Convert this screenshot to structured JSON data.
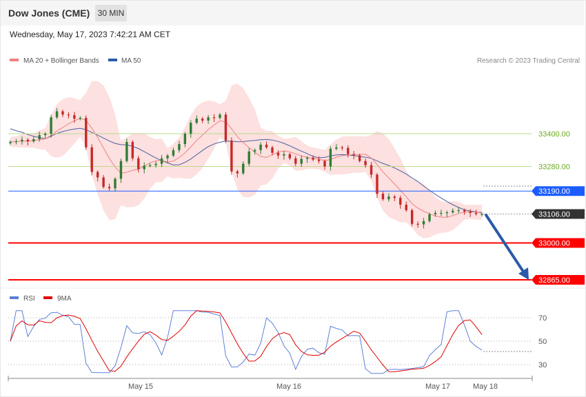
{
  "header": {
    "title": "Dow Jones (CME)",
    "timeframe": "30 MIN"
  },
  "datetime": "Wednesday, May 17, 2023 7:42:21 AM CET",
  "legend": {
    "price": [
      {
        "label": "MA 20 + Bollinger Bands",
        "color": "#f08080"
      },
      {
        "label": "MA 50",
        "color": "#2b5aa8"
      }
    ],
    "rsi": [
      {
        "label": "RSI",
        "color": "#5b7fd6"
      },
      {
        "label": "9MA",
        "color": "#e00000"
      }
    ]
  },
  "copyright": "Research © 2023 Trading Central",
  "colors": {
    "support": "#ff0000",
    "pivot": "#1a5cff",
    "resistance": "#9acd32",
    "last": "#333333",
    "arrow": "#2b5aa8",
    "up_candle": "#2e7d32",
    "down_candle": "#c62828",
    "band": "#fde0e0"
  },
  "chart_data": {
    "type": "candlestick",
    "title": "Dow Jones (CME)",
    "interval": "30 MIN",
    "price_axis": {
      "min": 32865,
      "max": 33480
    },
    "x_labels": [
      "May 15",
      "May 16",
      "May 17",
      "May 18"
    ],
    "price_levels": [
      {
        "value": 33400,
        "label": "33400.00",
        "kind": "resistance"
      },
      {
        "value": 33280,
        "label": "33280.00",
        "kind": "resistance"
      },
      {
        "value": 33190,
        "label": "33190.00",
        "kind": "pivot"
      },
      {
        "value": 33106,
        "label": "33106.00",
        "kind": "last"
      },
      {
        "value": 33000,
        "label": "33000.00",
        "kind": "support"
      },
      {
        "value": 32865,
        "label": "32865.00",
        "kind": "support"
      }
    ],
    "forecast_arrow": {
      "from": 33106,
      "to": 32865,
      "direction": "down"
    },
    "price_path": [
      33370,
      33372,
      33378,
      33372,
      33380,
      33395,
      33400,
      33460,
      33482,
      33470,
      33468,
      33455,
      33458,
      33350,
      33260,
      33240,
      33205,
      33200,
      33235,
      33300,
      33370,
      33310,
      33270,
      33283,
      33285,
      33290,
      33310,
      33320,
      33340,
      33362,
      33400,
      33440,
      33455,
      33448,
      33460,
      33458,
      33470,
      33375,
      33262,
      33255,
      33290,
      33335,
      33340,
      33360,
      33350,
      33330,
      33320,
      33325,
      33310,
      33290,
      33308,
      33312,
      33305,
      33300,
      33280,
      33345,
      33350,
      33348,
      33325,
      33321,
      33300,
      33285,
      33250,
      33180,
      33160,
      33170,
      33165,
      33140,
      33120,
      33070,
      33068,
      33080,
      33105,
      33110,
      33110,
      33112,
      33118,
      33120,
      33115,
      33110,
      33106,
      33106
    ],
    "rsi": {
      "levels": [
        70,
        50,
        30
      ],
      "range": [
        20,
        80
      ]
    }
  }
}
